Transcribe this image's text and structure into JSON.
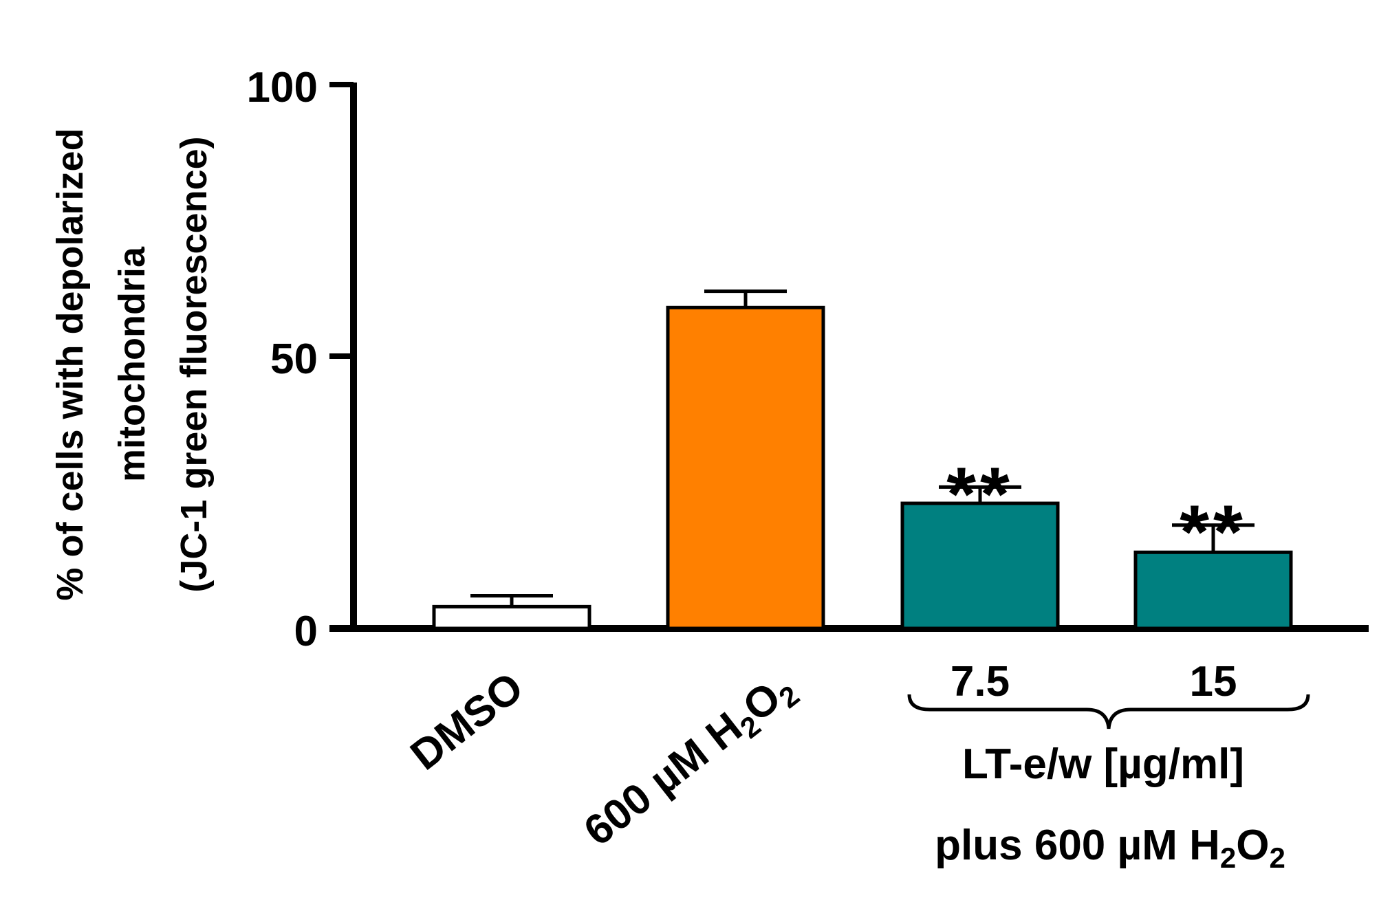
{
  "chart_data": {
    "type": "bar",
    "ylabel_lines": [
      "% of cells with depolarized",
      "mitochondria",
      "(JC-1 green fluorescence)"
    ],
    "ylim": [
      0,
      100
    ],
    "yticks": [
      "0",
      "50",
      "100"
    ],
    "categories": [
      "DMSO",
      "600 µM H2O2",
      "7.5",
      "15"
    ],
    "values": [
      4,
      59,
      23,
      14
    ],
    "errors": [
      2,
      3,
      3,
      5
    ],
    "colors": [
      "#ffffff",
      "#ff8000",
      "#008080",
      "#008080"
    ],
    "significance": [
      "",
      "",
      "**",
      "**"
    ],
    "group_label_line1": "LT-e/w [µg/ml]",
    "group_label_line2": "plus 600 µM H2O2"
  }
}
